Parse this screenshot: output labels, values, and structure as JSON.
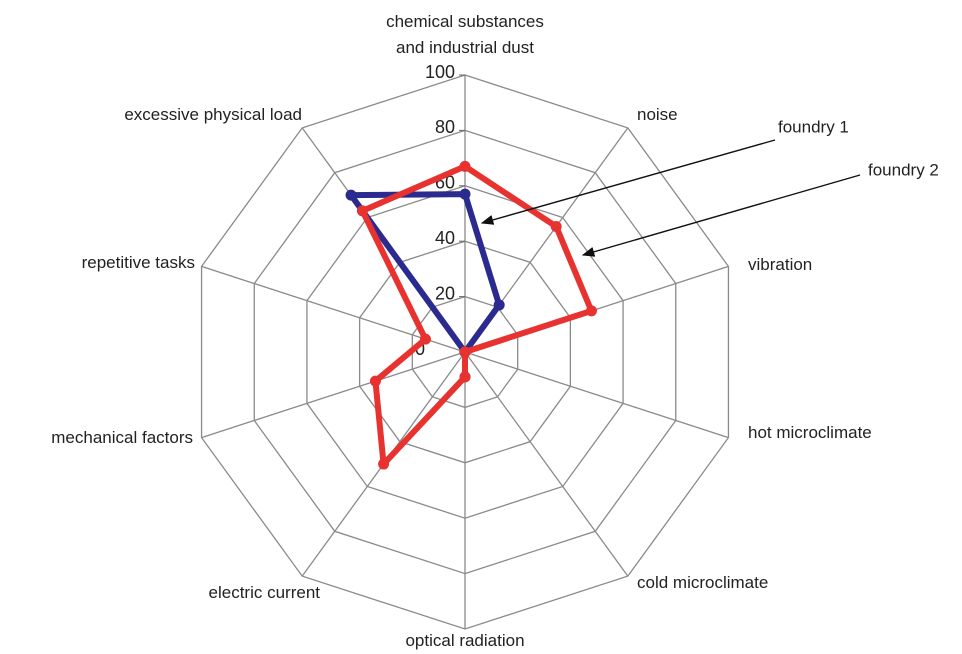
{
  "chart_data": {
    "type": "radar",
    "categories": [
      "chemical substances and industrial dust",
      "noise",
      "vibration",
      "hot microclimate",
      "cold microclimate",
      "optical radiation",
      "electric current",
      "mechanical factors",
      "repetitive tasks",
      "excessive physical load"
    ],
    "series": [
      {
        "name": "foundry 1",
        "color": "#2b2b8f",
        "values": [
          57,
          21,
          0,
          0,
          0,
          9,
          0,
          0,
          0,
          70
        ]
      },
      {
        "name": "foundry 2",
        "color": "#e8322f",
        "values": [
          67,
          56,
          48,
          0,
          0,
          9,
          50,
          34,
          15,
          63
        ]
      }
    ],
    "rlim": [
      0,
      100
    ],
    "rticks": [
      0,
      20,
      40,
      60,
      80,
      100
    ],
    "grid": true
  }
}
